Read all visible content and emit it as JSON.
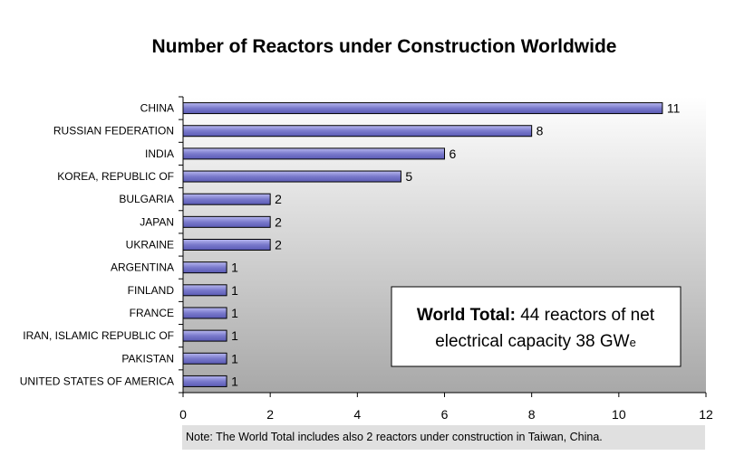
{
  "chart_data": {
    "type": "bar",
    "orientation": "horizontal",
    "title": "Number of Reactors under Construction Worldwide",
    "categories": [
      "CHINA",
      "RUSSIAN FEDERATION",
      "INDIA",
      "KOREA, REPUBLIC OF",
      "BULGARIA",
      "JAPAN",
      "UKRAINE",
      "ARGENTINA",
      "FINLAND",
      "FRANCE",
      "IRAN, ISLAMIC REPUBLIC OF",
      "PAKISTAN",
      "UNITED STATES OF AMERICA"
    ],
    "values": [
      11,
      8,
      6,
      5,
      2,
      2,
      2,
      1,
      1,
      1,
      1,
      1,
      1
    ],
    "xlim": [
      0,
      12
    ],
    "xticks": [
      0,
      2,
      4,
      6,
      8,
      10,
      12
    ],
    "grid": false,
    "data_labels": true
  },
  "total_box": {
    "bold": "World Total:",
    "line1_rest": " 44 reactors of net",
    "line2_main": "electrical capacity 38 GW",
    "line2_sub": "e"
  },
  "note": "Note: The World Total includes also 2 reactors under construction in Taiwan, China.",
  "colors": {
    "bar_light": "#b8b8f0",
    "bar_dark": "#5a5ab4",
    "plot_bg_top": "#ffffff",
    "plot_bg_bottom": "#a8a8a8",
    "note_bg": "#e0e0e0"
  }
}
